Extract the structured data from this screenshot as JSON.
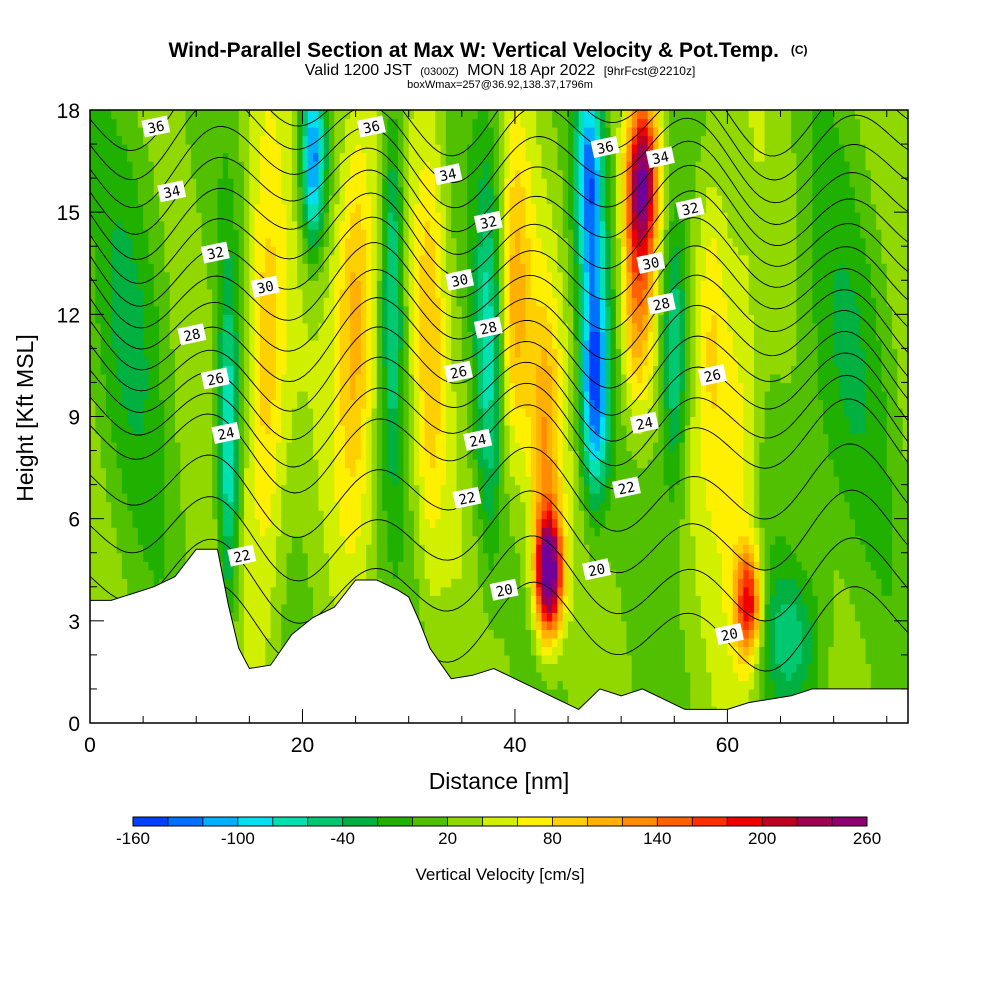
{
  "title": {
    "line1": "Wind-Parallel Section at Max W: Vertical Velocity & Pot.Temp.",
    "line1_mark": "(C)",
    "line2_a": "Valid 1200 JST",
    "line2_b": "(0300Z)",
    "line2_c": "MON 18 Apr 2022",
    "line2_d": "[9hrFcst@2210z]",
    "line3": "boxWmax=257@36.92,138.37,1796m"
  },
  "chart_data": {
    "type": "heatmap",
    "xlabel": "Distance [nm]",
    "ylabel": "Height [Kft MSL]",
    "xlim": [
      0,
      77
    ],
    "ylim": [
      0,
      18
    ],
    "x_ticks": [
      0,
      20,
      40,
      60
    ],
    "y_ticks": [
      0,
      3,
      6,
      9,
      12,
      15,
      18
    ],
    "colorbar": {
      "title": "Vertical Velocity [cm/s]",
      "min": -160,
      "max": 260,
      "step": 20,
      "labels": [
        -160,
        -100,
        -40,
        20,
        80,
        140,
        200,
        260
      ],
      "colors": [
        "#0000f0",
        "#0040ff",
        "#0070ff",
        "#00b0ff",
        "#00e0f0",
        "#00e0b0",
        "#00c870",
        "#00b040",
        "#20b000",
        "#50c000",
        "#90d800",
        "#d0f000",
        "#fff000",
        "#ffd000",
        "#ffb000",
        "#ff8c00",
        "#ff6000",
        "#ff3000",
        "#ee0000",
        "#c00020",
        "#a00050",
        "#900070",
        "#70009a"
      ]
    },
    "velocity_features": [
      {
        "x": 43.2,
        "y": 4.4,
        "w": 260,
        "sx": 1.2,
        "sy": 1.7
      },
      {
        "x": 42.8,
        "y": 8.0,
        "w": 90,
        "sx": 1.5,
        "sy": 4.5
      },
      {
        "x": 52.0,
        "y": 16.0,
        "w": 200,
        "sx": 1.4,
        "sy": 2.2
      },
      {
        "x": 51.5,
        "y": 12.5,
        "w": 110,
        "sx": 1.5,
        "sy": 3.5
      },
      {
        "x": 62.0,
        "y": 3.5,
        "w": 170,
        "sx": 1.2,
        "sy": 1.6
      },
      {
        "x": 61.0,
        "y": 8.5,
        "w": 60,
        "sx": 2.0,
        "sy": 6.0
      },
      {
        "x": 47.5,
        "y": 10.0,
        "w": -170,
        "sx": 1.3,
        "sy": 3.5
      },
      {
        "x": 47.0,
        "y": 16.0,
        "w": -140,
        "sx": 1.3,
        "sy": 3.0
      },
      {
        "x": 21.0,
        "y": 16.5,
        "w": -150,
        "sx": 1.1,
        "sy": 2.5
      },
      {
        "x": 13.0,
        "y": 8.0,
        "w": -110,
        "sx": 1.0,
        "sy": 5.0
      },
      {
        "x": 28.5,
        "y": 13.0,
        "w": -90,
        "sx": 1.0,
        "sy": 5.5
      },
      {
        "x": 37.5,
        "y": 11.0,
        "w": -80,
        "sx": 1.3,
        "sy": 6.0
      },
      {
        "x": 55.0,
        "y": 11.0,
        "w": -100,
        "sx": 1.2,
        "sy": 4.0
      },
      {
        "x": 16.5,
        "y": 10.0,
        "w": 80,
        "sx": 2.0,
        "sy": 7.0
      },
      {
        "x": 25.0,
        "y": 12.0,
        "w": 100,
        "sx": 2.0,
        "sy": 6.0
      },
      {
        "x": 32.0,
        "y": 11.0,
        "w": 60,
        "sx": 1.5,
        "sy": 7.0
      },
      {
        "x": 40.0,
        "y": 12.0,
        "w": 90,
        "sx": 1.5,
        "sy": 5.0
      },
      {
        "x": 58.5,
        "y": 12.0,
        "w": 60,
        "sx": 1.5,
        "sy": 5.0
      },
      {
        "x": 70.0,
        "y": 10.0,
        "w": -35,
        "sx": 5.0,
        "sy": 6.0
      },
      {
        "x": 4.0,
        "y": 12.0,
        "w": -35,
        "sx": 4.0,
        "sy": 6.0
      },
      {
        "x": 66.0,
        "y": 2.5,
        "w": -60,
        "sx": 3.0,
        "sy": 2.0
      }
    ],
    "terrain": [
      [
        0,
        3.6
      ],
      [
        2,
        3.6
      ],
      [
        4,
        3.8
      ],
      [
        6,
        4.0
      ],
      [
        8,
        4.3
      ],
      [
        10,
        5.1
      ],
      [
        12,
        5.1
      ],
      [
        13,
        3.5
      ],
      [
        14,
        2.2
      ],
      [
        15,
        1.6
      ],
      [
        17,
        1.7
      ],
      [
        19,
        2.6
      ],
      [
        21,
        3.1
      ],
      [
        23,
        3.4
      ],
      [
        24,
        3.8
      ],
      [
        25,
        4.2
      ],
      [
        27,
        4.2
      ],
      [
        29,
        3.9
      ],
      [
        30,
        3.7
      ],
      [
        31,
        3.0
      ],
      [
        32,
        2.2
      ],
      [
        34,
        1.3
      ],
      [
        36,
        1.4
      ],
      [
        38,
        1.6
      ],
      [
        40,
        1.3
      ],
      [
        42,
        1.0
      ],
      [
        44,
        0.7
      ],
      [
        46,
        0.4
      ],
      [
        48,
        1.0
      ],
      [
        50,
        0.8
      ],
      [
        52,
        1.0
      ],
      [
        54,
        0.7
      ],
      [
        56,
        0.4
      ],
      [
        60,
        0.4
      ],
      [
        62,
        0.6
      ],
      [
        66,
        0.8
      ],
      [
        68,
        1.0
      ],
      [
        72,
        1.0
      ],
      [
        74,
        1.0
      ],
      [
        77,
        1.0
      ]
    ],
    "isentropes": {
      "levels": [
        20,
        21,
        22,
        23,
        24,
        25,
        26,
        27,
        28,
        29,
        30,
        31,
        32,
        33,
        34,
        35,
        36,
        37
      ],
      "labels": [
        {
          "text": "36",
          "x": 6.2,
          "y": 17.5
        },
        {
          "text": "34",
          "x": 7.7,
          "y": 15.6
        },
        {
          "text": "32",
          "x": 11.8,
          "y": 13.8
        },
        {
          "text": "30",
          "x": 16.5,
          "y": 12.8
        },
        {
          "text": "28",
          "x": 9.6,
          "y": 11.4
        },
        {
          "text": "26",
          "x": 11.8,
          "y": 10.1
        },
        {
          "text": "24",
          "x": 12.8,
          "y": 8.5
        },
        {
          "text": "22",
          "x": 14.3,
          "y": 4.9
        },
        {
          "text": "36",
          "x": 26.5,
          "y": 17.5
        },
        {
          "text": "34",
          "x": 33.7,
          "y": 16.1
        },
        {
          "text": "32",
          "x": 37.5,
          "y": 14.7
        },
        {
          "text": "30",
          "x": 34.8,
          "y": 13.0
        },
        {
          "text": "28",
          "x": 37.5,
          "y": 11.6
        },
        {
          "text": "26",
          "x": 34.7,
          "y": 10.3
        },
        {
          "text": "24",
          "x": 36.5,
          "y": 8.3
        },
        {
          "text": "22",
          "x": 35.5,
          "y": 6.6
        },
        {
          "text": "20",
          "x": 39.0,
          "y": 3.9
        },
        {
          "text": "36",
          "x": 48.5,
          "y": 16.9
        },
        {
          "text": "34",
          "x": 53.7,
          "y": 16.6
        },
        {
          "text": "32",
          "x": 56.5,
          "y": 15.1
        },
        {
          "text": "30",
          "x": 52.8,
          "y": 13.5
        },
        {
          "text": "28",
          "x": 53.8,
          "y": 12.3
        },
        {
          "text": "26",
          "x": 58.6,
          "y": 10.2
        },
        {
          "text": "24",
          "x": 52.2,
          "y": 8.8
        },
        {
          "text": "22",
          "x": 50.5,
          "y": 6.9
        },
        {
          "text": "20",
          "x": 47.7,
          "y": 4.5
        },
        {
          "text": "20",
          "x": 60.2,
          "y": 2.6
        }
      ]
    }
  }
}
